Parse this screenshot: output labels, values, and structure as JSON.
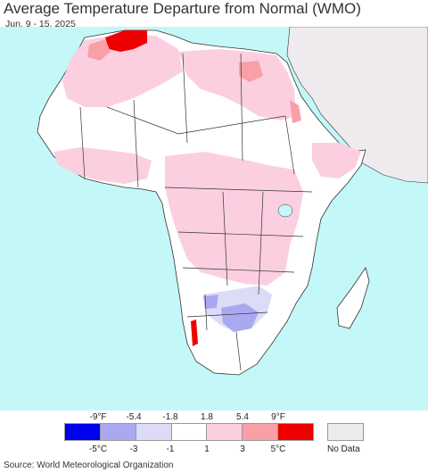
{
  "header": {
    "title": "Average Temperature Departure from Normal (WMO)",
    "date_range": "Jun. 9 - 15, 2025"
  },
  "colors": {
    "ocean": "#c4f7f7",
    "no_data": "#eeeaee",
    "land_normal": "#ffffff",
    "warm_light": "#fccfe0",
    "warm_mid": "#f8a0a6",
    "warm_strong": "#ee0000",
    "cool_light": "#dcdcf8",
    "cool_mid": "#a9a9f2",
    "cool_strong": "#0000f0",
    "border": "#333333"
  },
  "legend": {
    "fahrenheit_ticks": [
      "-9°F",
      "-5.4",
      "-1.8",
      "1.8",
      "5.4",
      "9°F"
    ],
    "celsius_ticks": [
      "-5°C",
      "-3",
      "-1",
      "1",
      "3",
      "5°C"
    ],
    "swatch_colors": [
      "#0000f0",
      "#a9a9f2",
      "#dcdcf8",
      "#ffffff",
      "#fccfe0",
      "#f8a0a6",
      "#ee0000"
    ],
    "no_data_label": "No Data"
  },
  "footer": {
    "source": "Source: World Meteorological Organization"
  }
}
